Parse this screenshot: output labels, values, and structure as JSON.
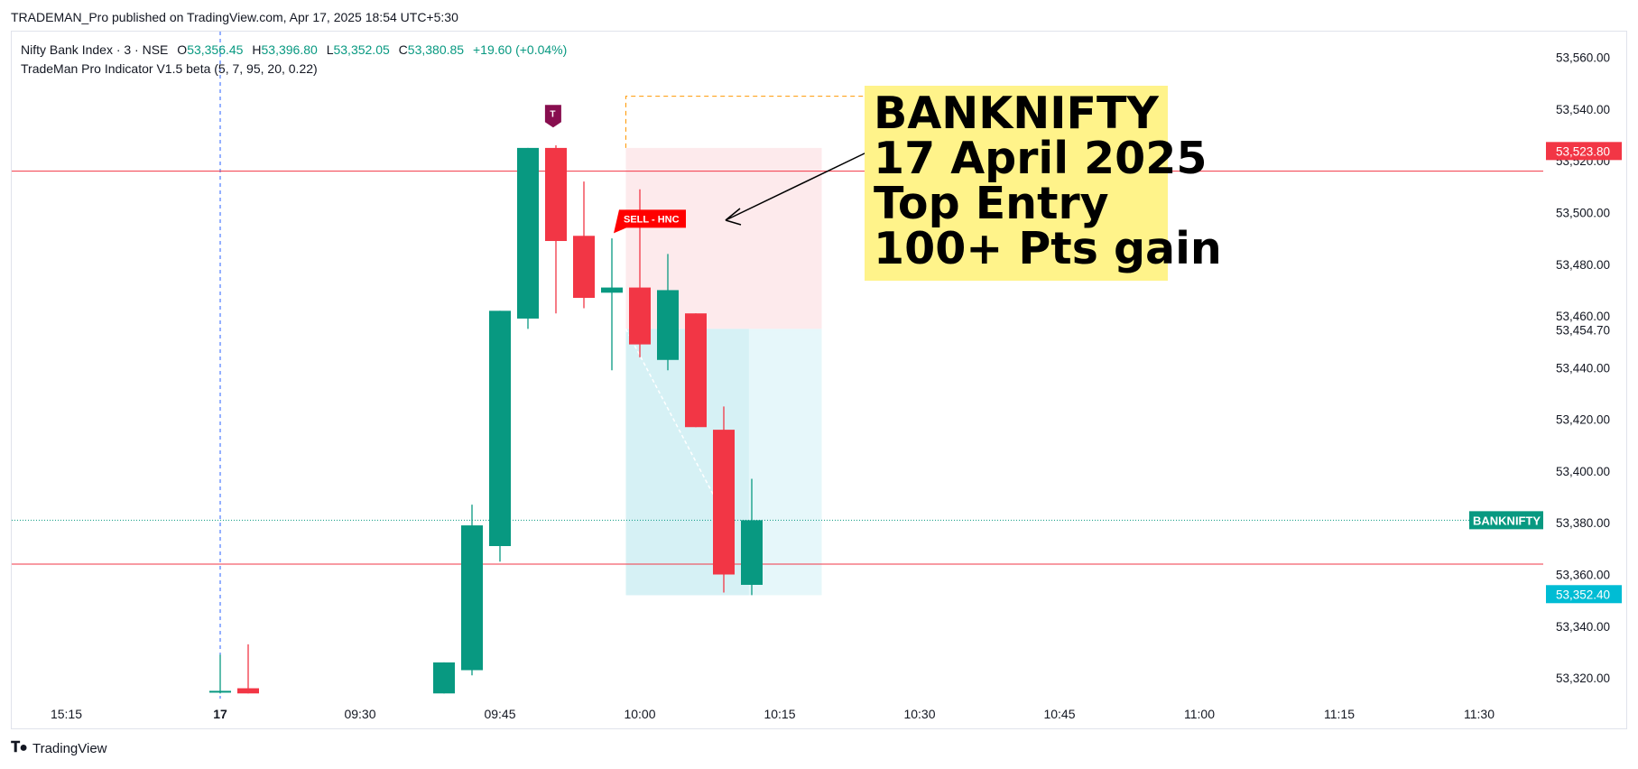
{
  "header": {
    "publisher_line": "TRADEMAN_Pro published on TradingView.com, Apr 17, 2025 18:54 UTC+5:30"
  },
  "legend": {
    "symbol": "Nifty Bank Index · 3 · NSE",
    "open_label": "O",
    "open": "53,356.45",
    "high_label": "H",
    "high": "53,396.80",
    "low_label": "L",
    "low": "53,352.05",
    "close_label": "C",
    "close": "53,380.85",
    "change": "+19.60 (+0.04%)",
    "indicator": "TradeMan Pro Indicator V1.5 beta (5, 7, 95, 20, 0.22)"
  },
  "callout": {
    "lines": [
      "BANKNIFTY",
      "17 April 2025",
      "Top Entry",
      "100+ Pts gain"
    ]
  },
  "footer": {
    "brand": "TradingView"
  },
  "colors": {
    "up": "#089981",
    "down": "#f23645",
    "stop_zone": "#fdeaec",
    "target_zone": "#d6f1f5",
    "target_zone_light": "#e6f7fa",
    "accent_label": "#00bcd4",
    "signal_red": "#ff0000",
    "marker": "#880e4f"
  },
  "chart_data": {
    "type": "candlestick",
    "x_ticks": [
      {
        "label": "15:15",
        "slot": -5.5
      },
      {
        "label": "17",
        "slot": 0,
        "bold": true
      },
      {
        "label": "09:30",
        "slot": 5
      },
      {
        "label": "09:45",
        "slot": 10
      },
      {
        "label": "10:00",
        "slot": 15
      },
      {
        "label": "10:15",
        "slot": 20
      },
      {
        "label": "10:30",
        "slot": 25
      },
      {
        "label": "10:45",
        "slot": 30
      },
      {
        "label": "11:00",
        "slot": 35
      },
      {
        "label": "11:15",
        "slot": 40
      },
      {
        "label": "11:30",
        "slot": 45
      }
    ],
    "y_ticks": [
      53320,
      53340,
      53360,
      53380,
      53400,
      53420,
      53440,
      53460,
      53480,
      53500,
      53520,
      53540,
      53560
    ],
    "y_tick_labels": [
      "53,320.00",
      "53,340.00",
      "53,360.00",
      "53,380.00",
      "53,400.00",
      "53,420.00",
      "53,440.00",
      "53,460.00",
      "53,480.00",
      "53,500.00",
      "53,520.00",
      "53,540.00",
      "53,560.00"
    ],
    "ylim": [
      53312,
      53570
    ],
    "candles": [
      {
        "slot": 0,
        "o": 53315,
        "h": 53329,
        "l": 53314,
        "c": 53315
      },
      {
        "slot": 1,
        "o": 53316,
        "h": 53333,
        "l": 53314,
        "c": 53314
      },
      {
        "slot": 8,
        "o": 53314,
        "h": 53326,
        "l": 53314,
        "c": 53326
      },
      {
        "slot": 9,
        "o": 53323,
        "h": 53387,
        "l": 53321,
        "c": 53379
      },
      {
        "slot": 10,
        "o": 53371,
        "h": 53462,
        "l": 53365,
        "c": 53462
      },
      {
        "slot": 11,
        "o": 53459,
        "h": 53525,
        "l": 53455,
        "c": 53525
      },
      {
        "slot": 12,
        "o": 53525,
        "h": 53526,
        "l": 53461,
        "c": 53489
      },
      {
        "slot": 13,
        "o": 53491,
        "h": 53512,
        "l": 53463,
        "c": 53467
      },
      {
        "slot": 14,
        "o": 53469,
        "h": 53490,
        "l": 53439,
        "c": 53471
      },
      {
        "slot": 15,
        "o": 53471,
        "h": 53509,
        "l": 53444,
        "c": 53449
      },
      {
        "slot": 16,
        "o": 53443,
        "h": 53484,
        "l": 53439,
        "c": 53470
      },
      {
        "slot": 17,
        "o": 53461,
        "h": 53461,
        "l": 53417,
        "c": 53417
      },
      {
        "slot": 18,
        "o": 53416,
        "h": 53425,
        "l": 53353,
        "c": 53360
      },
      {
        "slot": 19,
        "o": 53356,
        "h": 53397,
        "l": 53352,
        "c": 53381
      }
    ],
    "h_lines": [
      {
        "price": 53516,
        "color": "#f23645"
      },
      {
        "price": 53364,
        "color": "#f23645"
      },
      {
        "price": 53381,
        "color": "#089981",
        "dotted": true
      }
    ],
    "price_labels": [
      {
        "price": 53523.8,
        "text": "53,523.80",
        "bg": "#f23645",
        "fg": "#ffffff"
      },
      {
        "price": 53454.7,
        "text": "53,454.70",
        "bg": "none",
        "fg": "#131722"
      },
      {
        "price": 53352.4,
        "text": "53,352.40",
        "bg": "#00bcd4",
        "fg": "#ffffff"
      }
    ],
    "series_label": {
      "text": "BANKNIFTY",
      "price": 53381
    },
    "position": {
      "slot_start": 14.5,
      "slot_end": 21.5,
      "entry": 53455,
      "stop": 53525,
      "target": 53352,
      "fill_slot": 18.9
    },
    "dashed_box": {
      "slot_start": 14.5,
      "top": 53545
    },
    "signal": {
      "text": "SELL - HNC",
      "slot": 14,
      "price": 53492
    },
    "marker": {
      "text": "T",
      "slot": 11.9,
      "price": 53535
    },
    "session_break_slot": 0
  }
}
